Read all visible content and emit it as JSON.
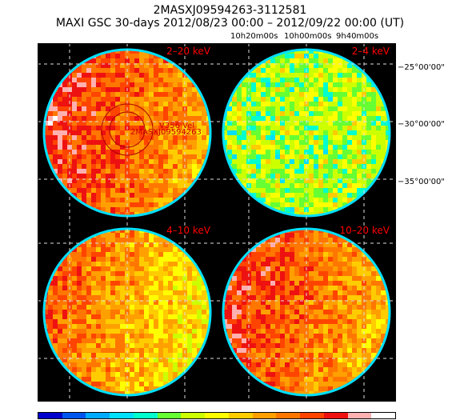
{
  "header": {
    "line1": "2MASXJ09594263-3112581",
    "line2": "MAXI GSC 30-days 2012/08/23 00:00 – 2012/09/22 00:00 (UT)"
  },
  "ra_labels": [
    "10h20m00s",
    "10h00m00s",
    "9h40m00s"
  ],
  "dec_labels": [
    "−25°00'00\"",
    "−30°00'00\"",
    "−35°00'00\""
  ],
  "panels": [
    {
      "label": "2–20 keV",
      "level": 0.72,
      "bright_side": "left"
    },
    {
      "label": "2–4 keV",
      "level": 0.42,
      "bright_side": "none"
    },
    {
      "label": "4–10 keV",
      "level": 0.62,
      "bright_side": "left"
    },
    {
      "label": "10–20 keV",
      "level": 0.7,
      "bright_side": "left"
    }
  ],
  "source_marker": {
    "label": "2MASXJ09594263",
    "secondary_label": "V356 Vel"
  },
  "colorbar": [
    "#0000cc",
    "#0055ee",
    "#00aaff",
    "#00e0ff",
    "#00ffcc",
    "#66ff33",
    "#ccff00",
    "#ffff00",
    "#ffcc00",
    "#ffa000",
    "#ff7700",
    "#ff4400",
    "#ee1111",
    "#ffb0b0",
    "#ffffff"
  ],
  "colors": {
    "grid": "#dddddd",
    "label": "#ff0000",
    "background": "#000000"
  }
}
